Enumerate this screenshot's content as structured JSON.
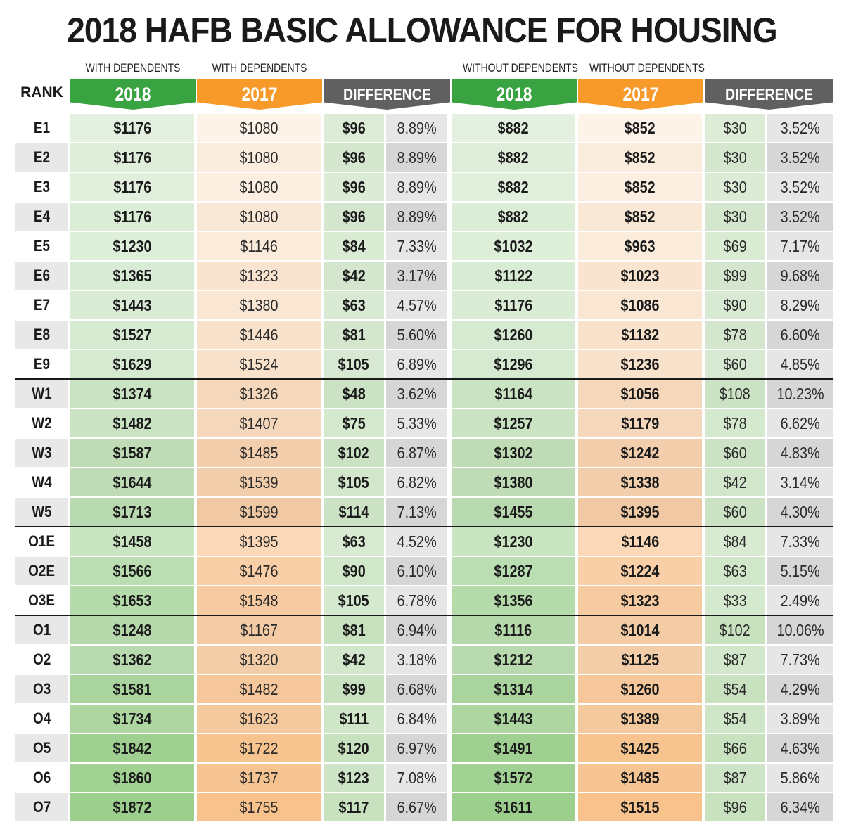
{
  "title": "2018 HAFB BASIC ALLOWANCE FOR HOUSING",
  "subheaders": {
    "with_2018": "WITH DEPENDENTS",
    "with_2017": "WITH DEPENDENTS",
    "without_2018": "WITHOUT DEPENDENTS",
    "without_2017": "WITHOUT DEPENDENTS"
  },
  "headers": {
    "rank": "RANK",
    "with_2018": "2018",
    "with_2017": "2017",
    "with_diff": "DIFFERENCE",
    "without_2018": "2018",
    "without_2017": "2017",
    "without_diff": "DIFFERENCE"
  },
  "colors": {
    "green_header": "#3aa341",
    "orange_header": "#f79a2a",
    "gray_header": "#606060"
  },
  "rows": [
    {
      "rank": "E1",
      "w18": "$1176",
      "w17": "$1080",
      "wd": "$96",
      "wp": "8.89%",
      "n18": "$882",
      "n17": "$852",
      "nd": "$30",
      "np": "3.52%"
    },
    {
      "rank": "E2",
      "w18": "$1176",
      "w17": "$1080",
      "wd": "$96",
      "wp": "8.89%",
      "n18": "$882",
      "n17": "$852",
      "nd": "$30",
      "np": "3.52%"
    },
    {
      "rank": "E3",
      "w18": "$1176",
      "w17": "$1080",
      "wd": "$96",
      "wp": "8.89%",
      "n18": "$882",
      "n17": "$852",
      "nd": "$30",
      "np": "3.52%"
    },
    {
      "rank": "E4",
      "w18": "$1176",
      "w17": "$1080",
      "wd": "$96",
      "wp": "8.89%",
      "n18": "$882",
      "n17": "$852",
      "nd": "$30",
      "np": "3.52%"
    },
    {
      "rank": "E5",
      "w18": "$1230",
      "w17": "$1146",
      "wd": "$84",
      "wp": "7.33%",
      "n18": "$1032",
      "n17": "$963",
      "nd": "$69",
      "np": "7.17%"
    },
    {
      "rank": "E6",
      "w18": "$1365",
      "w17": "$1323",
      "wd": "$42",
      "wp": "3.17%",
      "n18": "$1122",
      "n17": "$1023",
      "nd": "$99",
      "np": "9.68%"
    },
    {
      "rank": "E7",
      "w18": "$1443",
      "w17": "$1380",
      "wd": "$63",
      "wp": "4.57%",
      "n18": "$1176",
      "n17": "$1086",
      "nd": "$90",
      "np": "8.29%"
    },
    {
      "rank": "E8",
      "w18": "$1527",
      "w17": "$1446",
      "wd": "$81",
      "wp": "5.60%",
      "n18": "$1260",
      "n17": "$1182",
      "nd": "$78",
      "np": "6.60%"
    },
    {
      "rank": "E9",
      "w18": "$1629",
      "w17": "$1524",
      "wd": "$105",
      "wp": "6.89%",
      "n18": "$1296",
      "n17": "$1236",
      "nd": "$60",
      "np": "4.85%"
    },
    {
      "rank": "W1",
      "w18": "$1374",
      "w17": "$1326",
      "wd": "$48",
      "wp": "3.62%",
      "n18": "$1164",
      "n17": "$1056",
      "nd": "$108",
      "np": "10.23%"
    },
    {
      "rank": "W2",
      "w18": "$1482",
      "w17": "$1407",
      "wd": "$75",
      "wp": "5.33%",
      "n18": "$1257",
      "n17": "$1179",
      "nd": "$78",
      "np": "6.62%"
    },
    {
      "rank": "W3",
      "w18": "$1587",
      "w17": "$1485",
      "wd": "$102",
      "wp": "6.87%",
      "n18": "$1302",
      "n17": "$1242",
      "nd": "$60",
      "np": "4.83%"
    },
    {
      "rank": "W4",
      "w18": "$1644",
      "w17": "$1539",
      "wd": "$105",
      "wp": "6.82%",
      "n18": "$1380",
      "n17": "$1338",
      "nd": "$42",
      "np": "3.14%"
    },
    {
      "rank": "W5",
      "w18": "$1713",
      "w17": "$1599",
      "wd": "$114",
      "wp": "7.13%",
      "n18": "$1455",
      "n17": "$1395",
      "nd": "$60",
      "np": "4.30%"
    },
    {
      "rank": "O1E",
      "w18": "$1458",
      "w17": "$1395",
      "wd": "$63",
      "wp": "4.52%",
      "n18": "$1230",
      "n17": "$1146",
      "nd": "$84",
      "np": "7.33%"
    },
    {
      "rank": "O2E",
      "w18": "$1566",
      "w17": "$1476",
      "wd": "$90",
      "wp": "6.10%",
      "n18": "$1287",
      "n17": "$1224",
      "nd": "$63",
      "np": "5.15%"
    },
    {
      "rank": "O3E",
      "w18": "$1653",
      "w17": "$1548",
      "wd": "$105",
      "wp": "6.78%",
      "n18": "$1356",
      "n17": "$1323",
      "nd": "$33",
      "np": "2.49%"
    },
    {
      "rank": "O1",
      "w18": "$1248",
      "w17": "$1167",
      "wd": "$81",
      "wp": "6.94%",
      "n18": "$1116",
      "n17": "$1014",
      "nd": "$102",
      "np": "10.06%"
    },
    {
      "rank": "O2",
      "w18": "$1362",
      "w17": "$1320",
      "wd": "$42",
      "wp": "3.18%",
      "n18": "$1212",
      "n17": "$1125",
      "nd": "$87",
      "np": "7.73%"
    },
    {
      "rank": "O3",
      "w18": "$1581",
      "w17": "$1482",
      "wd": "$99",
      "wp": "6.68%",
      "n18": "$1314",
      "n17": "$1260",
      "nd": "$54",
      "np": "4.29%"
    },
    {
      "rank": "O4",
      "w18": "$1734",
      "w17": "$1623",
      "wd": "$111",
      "wp": "6.84%",
      "n18": "$1443",
      "n17": "$1389",
      "nd": "$54",
      "np": "3.89%"
    },
    {
      "rank": "O5",
      "w18": "$1842",
      "w17": "$1722",
      "wd": "$120",
      "wp": "6.97%",
      "n18": "$1491",
      "n17": "$1425",
      "nd": "$66",
      "np": "4.63%"
    },
    {
      "rank": "O6",
      "w18": "$1860",
      "w17": "$1737",
      "wd": "$123",
      "wp": "7.08%",
      "n18": "$1572",
      "n17": "$1485",
      "nd": "$87",
      "np": "5.86%"
    },
    {
      "rank": "O7",
      "w18": "$1872",
      "w17": "$1755",
      "wd": "$117",
      "wp": "6.67%",
      "n18": "$1611",
      "n17": "$1515",
      "nd": "$96",
      "np": "6.34%"
    }
  ]
}
